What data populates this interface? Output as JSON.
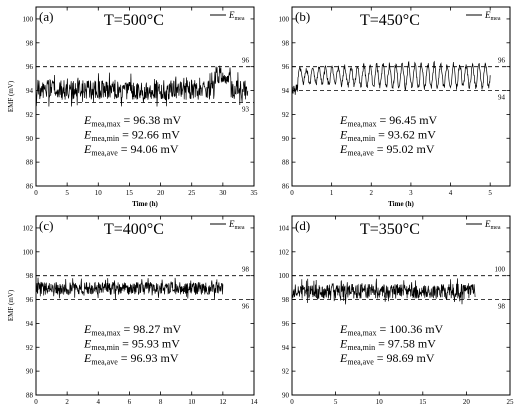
{
  "chart_data": [
    {
      "type": "line",
      "panel_label": "(a)",
      "title": "T=500°C",
      "xlabel": "Time (h)",
      "ylabel": "EMF (mV)",
      "xlim": [
        0,
        35
      ],
      "ylim": [
        86,
        101
      ],
      "xticks": [
        0,
        5,
        10,
        15,
        20,
        25,
        30,
        35
      ],
      "yticks": [
        86,
        88,
        90,
        92,
        94,
        96,
        98,
        100
      ],
      "legend": {
        "base": "E",
        "sub": "mea",
        "placement": "top-right"
      },
      "reference_lines": [
        96,
        93
      ],
      "series": [
        {
          "name": "Emea",
          "x_range": [
            0,
            34
          ],
          "center": 94.06,
          "min": 92.66,
          "max": 96.38,
          "spike_x": 30
        }
      ],
      "stats": [
        {
          "sub": "mea,max",
          "text": " = 96.38 mV"
        },
        {
          "sub": "mea,min",
          "text": " = 92.66 mV"
        },
        {
          "sub": "mea,ave",
          "text": " = 94.06 mV"
        }
      ]
    },
    {
      "type": "line",
      "panel_label": "(b)",
      "title": "T=450°C",
      "xlabel": "Time (h)",
      "ylabel": "",
      "xlim": [
        0,
        5.5
      ],
      "ylim": [
        86,
        101
      ],
      "xticks": [
        0,
        1,
        2,
        3,
        4,
        5
      ],
      "yticks": [
        86,
        88,
        90,
        92,
        94,
        96,
        98,
        100
      ],
      "legend": {
        "base": "E",
        "sub": "mea",
        "placement": "top-right"
      },
      "reference_lines": [
        96,
        94
      ],
      "series": [
        {
          "name": "Emea",
          "x_range": [
            0,
            5
          ],
          "center": 95.02,
          "min": 93.62,
          "max": 96.45,
          "oscillating": true
        }
      ],
      "stats": [
        {
          "sub": "mea,max",
          "text": " = 96.45 mV"
        },
        {
          "sub": "mea,min",
          "text": " = 93.62 mV"
        },
        {
          "sub": "mea,ave",
          "text": " = 95.02 mV"
        }
      ]
    },
    {
      "type": "line",
      "panel_label": "(c)",
      "title": "T=400°C",
      "xlabel": "",
      "ylabel": "EMF (mV)",
      "xlim": [
        0,
        14
      ],
      "ylim": [
        88,
        103
      ],
      "xticks": [
        0,
        2,
        4,
        6,
        8,
        10,
        12,
        14
      ],
      "yticks": [
        88,
        90,
        92,
        94,
        96,
        98,
        100,
        102
      ],
      "legend": {
        "base": "E",
        "sub": "mea",
        "placement": "top-right"
      },
      "reference_lines": [
        98,
        96
      ],
      "series": [
        {
          "name": "Emea",
          "x_range": [
            0,
            12
          ],
          "center": 96.93,
          "min": 95.93,
          "max": 98.27
        }
      ],
      "stats": [
        {
          "sub": "mea,max",
          "text": " = 98.27 mV"
        },
        {
          "sub": "mea,min",
          "text": " = 95.93 mV"
        },
        {
          "sub": "mea,ave",
          "text": " = 96.93 mV"
        }
      ]
    },
    {
      "type": "line",
      "panel_label": "(d)",
      "title": "T=350°C",
      "xlabel": "",
      "ylabel": "",
      "xlim": [
        0,
        25
      ],
      "ylim": [
        90,
        105
      ],
      "xticks": [
        0,
        5,
        10,
        15,
        20,
        25
      ],
      "yticks": [
        90,
        92,
        94,
        96,
        98,
        100,
        102,
        104
      ],
      "legend": {
        "base": "E",
        "sub": "mea",
        "placement": "top-right"
      },
      "reference_lines": [
        100,
        98
      ],
      "series": [
        {
          "name": "Emea",
          "x_range": [
            0,
            21
          ],
          "center": 98.69,
          "min": 97.58,
          "max": 100.36
        }
      ],
      "stats": [
        {
          "sub": "mea,max",
          "text": " = 100.36 mV"
        },
        {
          "sub": "mea,min",
          "text": " = 97.58 mV"
        },
        {
          "sub": "mea,ave",
          "text": " = 98.69 mV"
        }
      ]
    }
  ]
}
